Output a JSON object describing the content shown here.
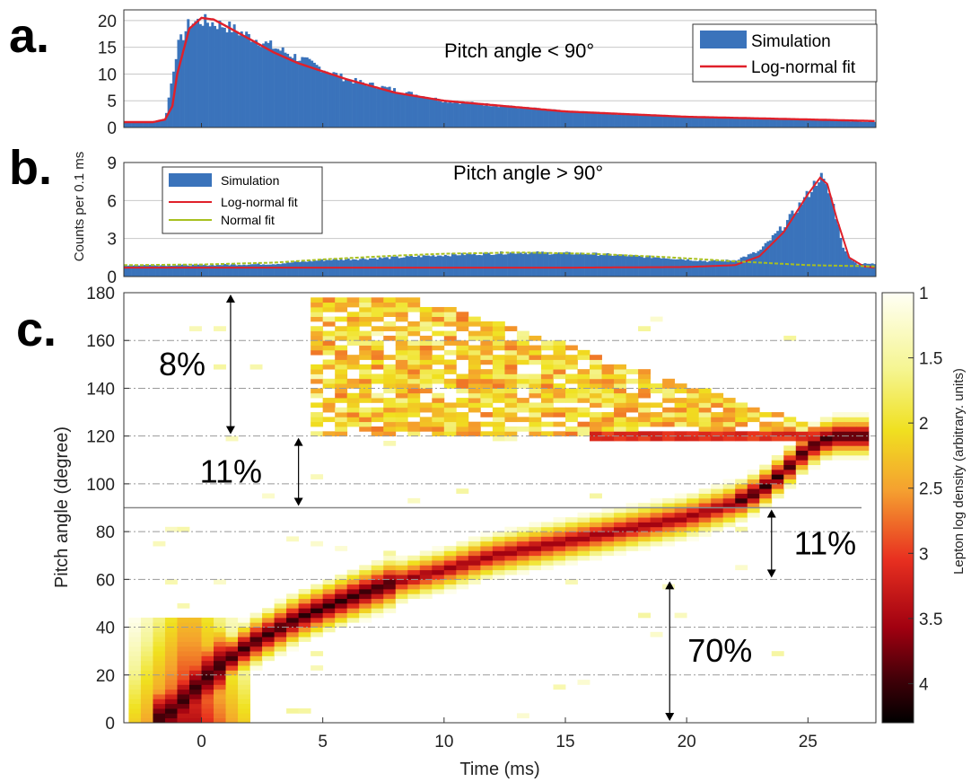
{
  "panel_labels": {
    "a": "a.",
    "b": "b.",
    "c": "c."
  },
  "colors": {
    "bars": "#3a73bb",
    "lognormal": "#e0202a",
    "normal": "#a8c020",
    "grid": "#c8c8c8"
  },
  "chart_data": [
    {
      "id": "a",
      "type": "bar",
      "title": "Pitch angle < 90°",
      "ylabel": "Counts per 0.1 ms",
      "xlim": [
        -3.2,
        27.8
      ],
      "ylim": [
        0,
        22
      ],
      "yticks": [
        0,
        5,
        10,
        15,
        20
      ],
      "legend": {
        "position": "top-right",
        "entries": [
          "Simulation",
          "Log-normal fit"
        ]
      },
      "series": [
        {
          "name": "Simulation",
          "type": "histogram",
          "x": [
            -3,
            -2,
            -1.5,
            -1,
            -0.5,
            0,
            0.5,
            1,
            2,
            3,
            4,
            5,
            6,
            8,
            10,
            15,
            20,
            25,
            27.8
          ],
          "y": [
            1,
            1,
            1.5,
            15,
            19.5,
            20,
            19.5,
            19,
            17,
            15,
            13,
            11,
            9,
            7,
            5,
            3,
            2,
            1.5,
            1
          ]
        },
        {
          "name": "Log-normal fit",
          "type": "line",
          "x": [
            -3,
            -2,
            -1.5,
            -1.2,
            -1,
            -0.5,
            0,
            0.5,
            1,
            2,
            3,
            4,
            5,
            6,
            8,
            10,
            15,
            20,
            25,
            27.8
          ],
          "y": [
            1,
            1,
            1.5,
            4,
            10,
            18.5,
            20.5,
            20.2,
            19,
            16.5,
            14,
            12,
            10.5,
            9,
            6.5,
            5,
            3,
            2,
            1.5,
            1.2
          ]
        }
      ]
    },
    {
      "id": "b",
      "type": "bar",
      "title": "Pitch angle > 90°",
      "xlim": [
        -3.2,
        27.8
      ],
      "ylim": [
        0,
        9
      ],
      "yticks": [
        0,
        3,
        6,
        9
      ],
      "legend": {
        "position": "top-left",
        "entries": [
          "Simulation",
          "Log-normal fit",
          "Normal fit"
        ]
      },
      "series": [
        {
          "name": "Simulation",
          "type": "histogram",
          "x": [
            -3,
            0,
            3,
            5,
            8,
            10,
            13,
            16,
            19,
            21,
            22,
            23,
            24,
            25,
            25.5,
            26,
            26.5,
            27,
            27.8
          ],
          "y": [
            0.9,
            0.9,
            1,
            1.3,
            1.5,
            1.7,
            1.9,
            1.8,
            1.5,
            1.2,
            1.3,
            2,
            4,
            6.5,
            8,
            6,
            2,
            1,
            1
          ]
        },
        {
          "name": "Log-normal fit",
          "type": "line",
          "x": [
            -3,
            5,
            10,
            15,
            20,
            22,
            23,
            24,
            25,
            25.5,
            25.8,
            26.2,
            26.7,
            27.3,
            27.8
          ],
          "y": [
            0.7,
            0.7,
            0.7,
            0.7,
            0.75,
            0.9,
            1.6,
            3.5,
            6.5,
            7.8,
            7.3,
            4.5,
            1.5,
            0.8,
            0.7
          ]
        },
        {
          "name": "Normal fit",
          "type": "line",
          "x": [
            -3,
            0,
            3,
            5,
            8,
            10,
            13,
            16,
            19,
            22,
            25,
            27.8
          ],
          "y": [
            0.9,
            0.95,
            1.1,
            1.35,
            1.65,
            1.8,
            1.9,
            1.8,
            1.55,
            1.2,
            0.9,
            0.8
          ]
        }
      ]
    },
    {
      "id": "c",
      "type": "heatmap",
      "xlabel": "Time (ms)",
      "ylabel": "Pitch angle (degree)",
      "colorbar_label": "Lepton log density (arbitrary. units)",
      "xlim": [
        -3.2,
        27.8
      ],
      "ylim": [
        0,
        180
      ],
      "xticks": [
        0,
        5,
        10,
        15,
        20,
        25
      ],
      "yticks": [
        0,
        20,
        40,
        60,
        80,
        100,
        120,
        140,
        160,
        180
      ],
      "colorbar_ticks": [
        1,
        1.5,
        2,
        2.5,
        3,
        3.5,
        4
      ],
      "colorbar_range": [
        1,
        4.3
      ],
      "reference_lines_deg": [
        20,
        40,
        60,
        80,
        100,
        120,
        140,
        160
      ],
      "threshold_line_deg": 90,
      "ridge": {
        "t": [
          -1.5,
          -0.5,
          0.5,
          2,
          4,
          6,
          8,
          10,
          12,
          14,
          16,
          18,
          20,
          22,
          23,
          24,
          25,
          26,
          27
        ],
        "deg": [
          2,
          12,
          22,
          33,
          44,
          52,
          59,
          64,
          70,
          74,
          78,
          82,
          86,
          92,
          97,
          105,
          115,
          120,
          120
        ]
      },
      "annotations": [
        {
          "text": "8%",
          "from_deg": 120,
          "to_deg": 180,
          "t": 1.2
        },
        {
          "text": "11%",
          "from_deg": 90,
          "to_deg": 120,
          "t": 4
        },
        {
          "text": "11%",
          "from_deg": 60,
          "to_deg": 90,
          "t": 23.5
        },
        {
          "text": "70%",
          "from_deg": 0,
          "to_deg": 60,
          "t": 19.3
        }
      ]
    }
  ]
}
